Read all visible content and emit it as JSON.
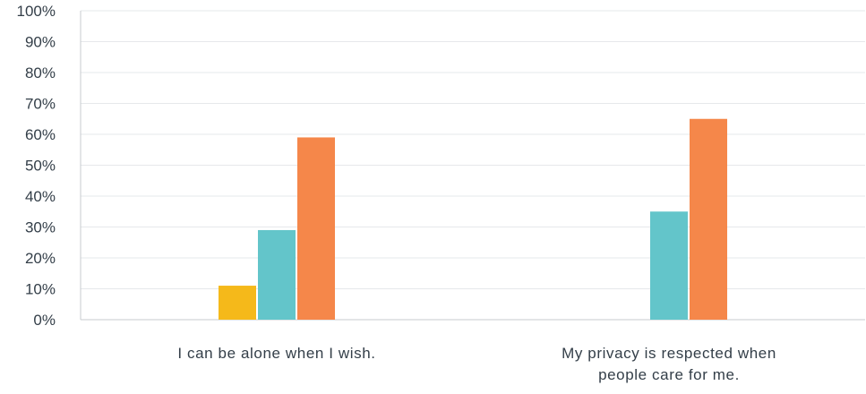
{
  "chart_data": {
    "type": "bar",
    "categories": [
      [
        "I can be alone when I wish."
      ],
      [
        "My privacy is respected when",
        "people care for me."
      ]
    ],
    "series": [
      {
        "color": "#f5b91a",
        "values": [
          11,
          0
        ]
      },
      {
        "color": "#63c5ca",
        "values": [
          29,
          35
        ]
      },
      {
        "color": "#f5874a",
        "values": [
          59,
          65
        ]
      }
    ],
    "yticks": [
      "0%",
      "10%",
      "20%",
      "30%",
      "40%",
      "50%",
      "60%",
      "70%",
      "80%",
      "90%",
      "100%"
    ],
    "ylim": [
      0,
      100
    ],
    "grid": true,
    "legend": "none"
  }
}
